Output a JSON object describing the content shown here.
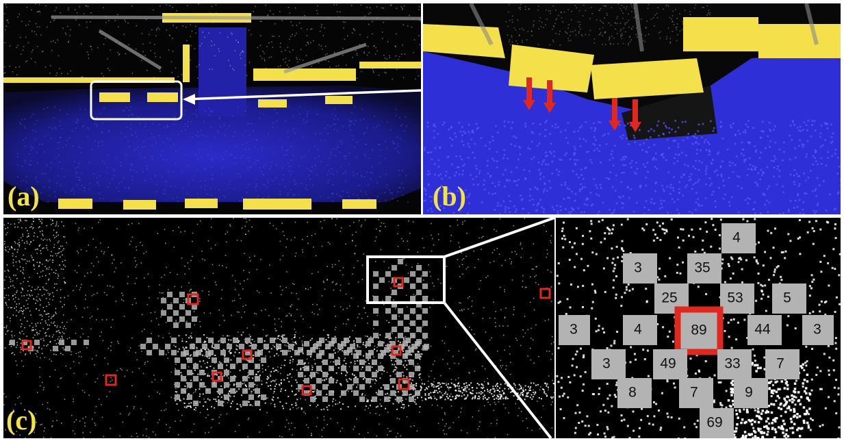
{
  "panels": [
    {
      "id": "a",
      "label": "(a)"
    },
    {
      "id": "b",
      "label": "(b)"
    },
    {
      "id": "c",
      "label": "(c)"
    }
  ],
  "zoom_grid": {
    "cells": [
      {
        "value": "4"
      },
      {
        "value": "3"
      },
      {
        "value": "35"
      },
      {
        "value": "25"
      },
      {
        "value": "53"
      },
      {
        "value": "5"
      },
      {
        "value": "3"
      },
      {
        "value": "4"
      },
      {
        "value": "89",
        "highlight": true
      },
      {
        "value": "44"
      },
      {
        "value": "3"
      },
      {
        "value": "3"
      },
      {
        "value": "49"
      },
      {
        "value": "33"
      },
      {
        "value": "7"
      },
      {
        "value": "8"
      },
      {
        "value": "7"
      },
      {
        "value": "9"
      },
      {
        "value": "69"
      }
    ]
  },
  "colors": {
    "ground": "#2f2fd8",
    "ground_dark": "#1a1a80",
    "obstacle": "#f4e04a",
    "points": "#ffffff",
    "highlight": "#e0281e",
    "cell": "#b3b3b3",
    "label": "#f2e24a"
  }
}
